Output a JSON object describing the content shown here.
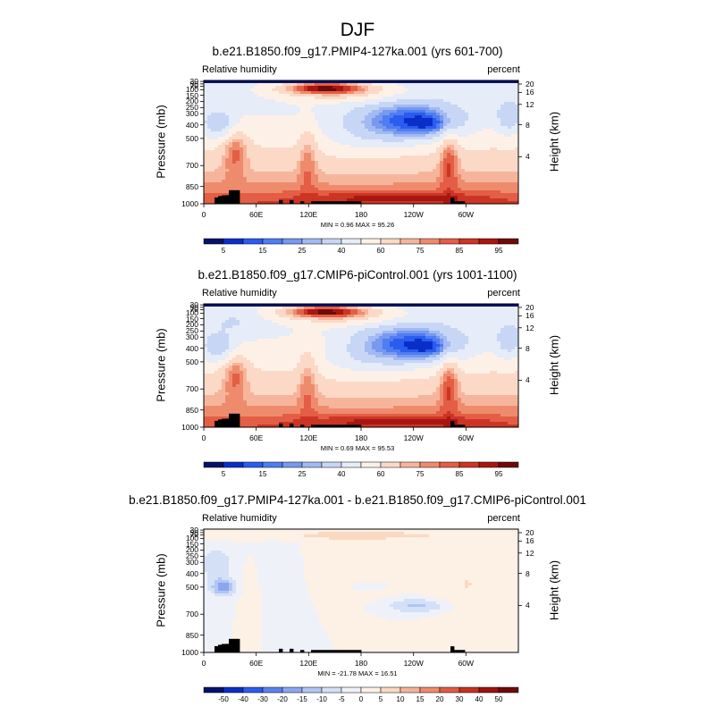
{
  "figure": {
    "title": "DJF"
  },
  "chart_data": [
    {
      "type": "heatmap",
      "title": "b.e21.B1850.f09_g17.PMIP4-127ka.001 (yrs 601-700)",
      "variable": "Relative humidity",
      "units": "percent",
      "ylabel": "Pressure (mb)",
      "ylabel_right": "Height (km)",
      "x_ticks": [
        "0",
        "60E",
        "120E",
        "180",
        "120W",
        "60W"
      ],
      "y_ticks": [
        "1000",
        "850",
        "700",
        "500",
        "400",
        "300",
        "250",
        "200",
        "150",
        "100",
        "70",
        "50",
        "30"
      ],
      "y_ticks_right": [
        "4",
        "8",
        "12",
        "16",
        "20"
      ],
      "stats": "MIN =   0.96  MAX =  95.26",
      "min": 0.96,
      "max": 95.26,
      "colorbar_labels": [
        "5",
        "15",
        "25",
        "40",
        "60",
        "75",
        "85",
        "95"
      ],
      "colorbar_levels": [
        5,
        10,
        15,
        20,
        25,
        30,
        40,
        50,
        60,
        70,
        75,
        80,
        85,
        90,
        95
      ]
    },
    {
      "type": "heatmap",
      "title": "b.e21.B1850.f09_g17.CMIP6-piControl.001 (yrs 1001-1100)",
      "variable": "Relative humidity",
      "units": "percent",
      "ylabel": "Pressure (mb)",
      "ylabel_right": "Height (km)",
      "x_ticks": [
        "0",
        "60E",
        "120E",
        "180",
        "120W",
        "60W"
      ],
      "y_ticks": [
        "1000",
        "850",
        "700",
        "500",
        "400",
        "300",
        "250",
        "200",
        "150",
        "100",
        "70",
        "50",
        "30"
      ],
      "y_ticks_right": [
        "4",
        "8",
        "12",
        "16",
        "20"
      ],
      "stats": "MIN =   0.69  MAX =  95.53",
      "min": 0.69,
      "max": 95.53,
      "colorbar_labels": [
        "5",
        "15",
        "25",
        "40",
        "60",
        "75",
        "85",
        "95"
      ],
      "colorbar_levels": [
        5,
        10,
        15,
        20,
        25,
        30,
        40,
        50,
        60,
        70,
        75,
        80,
        85,
        90,
        95
      ]
    },
    {
      "type": "heatmap",
      "title": "b.e21.B1850.f09_g17.PMIP4-127ka.001 - b.e21.B1850.f09_g17.CMIP6-piControl.001",
      "variable": "Relative humidity",
      "units": "percent",
      "ylabel": "Pressure (mb)",
      "ylabel_right": "Height (km)",
      "x_ticks": [
        "0",
        "60E",
        "120E",
        "180",
        "120W",
        "60W"
      ],
      "y_ticks": [
        "1000",
        "850",
        "700",
        "500",
        "400",
        "300",
        "250",
        "200",
        "150",
        "100",
        "70",
        "50",
        "30"
      ],
      "y_ticks_right": [
        "4",
        "8",
        "12",
        "16",
        "20"
      ],
      "stats": "MIN = -21.78  MAX =  16.51",
      "min": -21.78,
      "max": 16.51,
      "colorbar_labels": [
        "-50",
        "-40",
        "-30",
        "-20",
        "-15",
        "-10",
        "-5",
        "0",
        "5",
        "10",
        "15",
        "20",
        "30",
        "40",
        "50"
      ],
      "colorbar_levels": [
        -50,
        -40,
        -30,
        -20,
        -15,
        -10,
        -5,
        0,
        5,
        10,
        15,
        20,
        30,
        40,
        50
      ]
    }
  ],
  "colors": {
    "abs_palette": [
      "#05126b",
      "#0a2fc8",
      "#2a5cf0",
      "#4f7df2",
      "#7799ef",
      "#a2b9f2",
      "#c8d6f5",
      "#e6ecf8",
      "#fdf1e7",
      "#fbd9c6",
      "#f6b59b",
      "#ef8b6d",
      "#e35e45",
      "#cc3524",
      "#a8170f",
      "#6e0a0a"
    ],
    "diff_palette": [
      "#05126b",
      "#0a2fc8",
      "#2a5cf0",
      "#5a82ef",
      "#8aa6f0",
      "#b1c6f4",
      "#d4e0f6",
      "#eef2f8",
      "#fdf0e4",
      "#fbd8c2",
      "#f6b298",
      "#ef8a6b",
      "#e05a43",
      "#c4311f",
      "#9c130d",
      "#6e0a0a"
    ],
    "topography": "#000000"
  }
}
